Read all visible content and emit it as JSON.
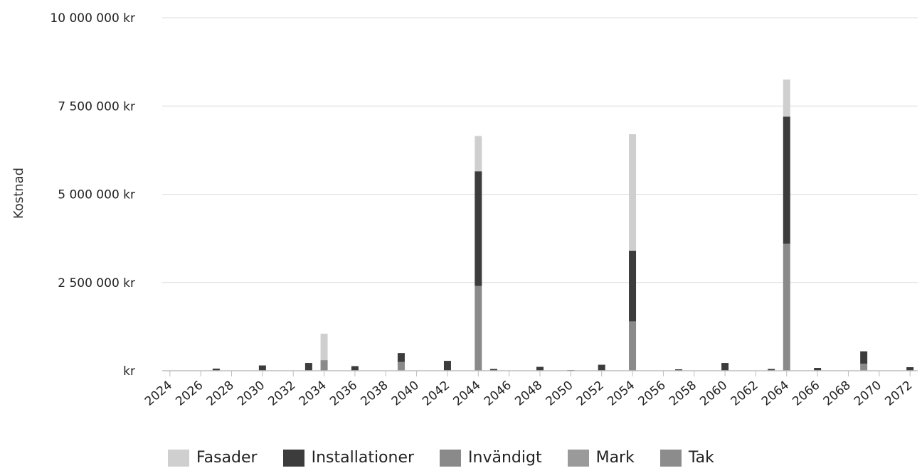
{
  "chart_data": {
    "type": "bar",
    "stacked": true,
    "xlabel": "",
    "ylabel": "Kostnad",
    "ylim": [
      0,
      10000000
    ],
    "y_ticks": [
      {
        "value": 0,
        "label": "kr"
      },
      {
        "value": 2500000,
        "label": "2 500 000 kr"
      },
      {
        "value": 5000000,
        "label": "5 000 000 kr"
      },
      {
        "value": 7500000,
        "label": "7 500 000 kr"
      },
      {
        "value": 10000000,
        "label": "10 000 000 kr"
      }
    ],
    "grid": true,
    "legend_position": "bottom",
    "categories": [
      "2024",
      "2025",
      "2026",
      "2027",
      "2028",
      "2029",
      "2030",
      "2031",
      "2032",
      "2033",
      "2034",
      "2035",
      "2036",
      "2037",
      "2038",
      "2039",
      "2040",
      "2041",
      "2042",
      "2043",
      "2044",
      "2045",
      "2046",
      "2047",
      "2048",
      "2049",
      "2050",
      "2051",
      "2052",
      "2053",
      "2054",
      "2055",
      "2056",
      "2057",
      "2058",
      "2059",
      "2060",
      "2061",
      "2062",
      "2063",
      "2064",
      "2065",
      "2066",
      "2067",
      "2068",
      "2069",
      "2070",
      "2071",
      "2072"
    ],
    "x_tick_labels": [
      "2024",
      "2026",
      "2028",
      "2030",
      "2032",
      "2034",
      "2036",
      "2038",
      "2040",
      "2042",
      "2044",
      "2046",
      "2048",
      "2050",
      "2052",
      "2054",
      "2056",
      "2058",
      "2060",
      "2062",
      "2064",
      "2066",
      "2068",
      "2070",
      "2072"
    ],
    "series": [
      {
        "name": "Tak",
        "color": "#8c8c8c",
        "values": [
          0,
          0,
          0,
          0,
          0,
          0,
          0,
          0,
          0,
          0,
          0,
          0,
          0,
          0,
          0,
          0,
          0,
          0,
          0,
          0,
          0,
          0,
          0,
          0,
          0,
          0,
          0,
          0,
          0,
          0,
          0,
          0,
          0,
          0,
          0,
          0,
          0,
          0,
          0,
          0,
          0,
          0,
          0,
          0,
          0,
          0,
          0,
          0,
          0
        ]
      },
      {
        "name": "Mark",
        "color": "#9a9a9a",
        "values": [
          0,
          0,
          0,
          0,
          0,
          0,
          0,
          0,
          0,
          0,
          0,
          0,
          0,
          0,
          0,
          0,
          0,
          0,
          0,
          0,
          0,
          0,
          0,
          0,
          0,
          0,
          0,
          0,
          0,
          0,
          0,
          0,
          0,
          0,
          0,
          0,
          0,
          0,
          0,
          0,
          0,
          0,
          0,
          0,
          0,
          0,
          0,
          0,
          0
        ]
      },
      {
        "name": "Invändigt",
        "color": "#8a8a8a",
        "values": [
          0,
          0,
          0,
          0,
          0,
          0,
          0,
          0,
          0,
          0,
          300000,
          0,
          0,
          0,
          0,
          250000,
          0,
          0,
          0,
          0,
          2400000,
          0,
          0,
          0,
          0,
          0,
          0,
          0,
          0,
          0,
          1400000,
          0,
          0,
          0,
          0,
          0,
          0,
          0,
          0,
          0,
          3600000,
          0,
          0,
          0,
          0,
          200000,
          0,
          0,
          0
        ]
      },
      {
        "name": "Installationer",
        "color": "#3c3c3c",
        "values": [
          0,
          0,
          0,
          60000,
          0,
          0,
          150000,
          0,
          0,
          220000,
          0,
          0,
          130000,
          0,
          0,
          250000,
          0,
          0,
          280000,
          0,
          3250000,
          50000,
          0,
          0,
          110000,
          0,
          20000,
          0,
          170000,
          0,
          2000000,
          0,
          0,
          40000,
          0,
          0,
          220000,
          0,
          0,
          50000,
          3600000,
          0,
          80000,
          0,
          0,
          350000,
          0,
          0,
          100000
        ]
      },
      {
        "name": "Fasader",
        "color": "#cfcfcf",
        "values": [
          0,
          0,
          0,
          0,
          0,
          0,
          0,
          0,
          0,
          0,
          750000,
          0,
          0,
          0,
          0,
          0,
          0,
          0,
          0,
          0,
          1000000,
          0,
          0,
          0,
          0,
          0,
          0,
          0,
          0,
          0,
          3300000,
          0,
          0,
          0,
          0,
          0,
          0,
          0,
          0,
          0,
          1050000,
          0,
          0,
          0,
          0,
          0,
          0,
          0,
          0
        ]
      }
    ],
    "legend_entries": [
      {
        "name": "Fasader",
        "color": "#cfcfcf"
      },
      {
        "name": "Installationer",
        "color": "#3c3c3c"
      },
      {
        "name": "Invändigt",
        "color": "#8a8a8a"
      },
      {
        "name": "Mark",
        "color": "#9a9a9a"
      },
      {
        "name": "Tak",
        "color": "#8c8c8c"
      }
    ]
  },
  "legend": {
    "items": [
      {
        "label": "Fasader",
        "color": "#cfcfcf"
      },
      {
        "label": "Installationer",
        "color": "#3c3c3c"
      },
      {
        "label": "Invändigt",
        "color": "#8a8a8a"
      },
      {
        "label": "Mark",
        "color": "#9a9a9a"
      },
      {
        "label": "Tak",
        "color": "#8c8c8c"
      }
    ]
  }
}
